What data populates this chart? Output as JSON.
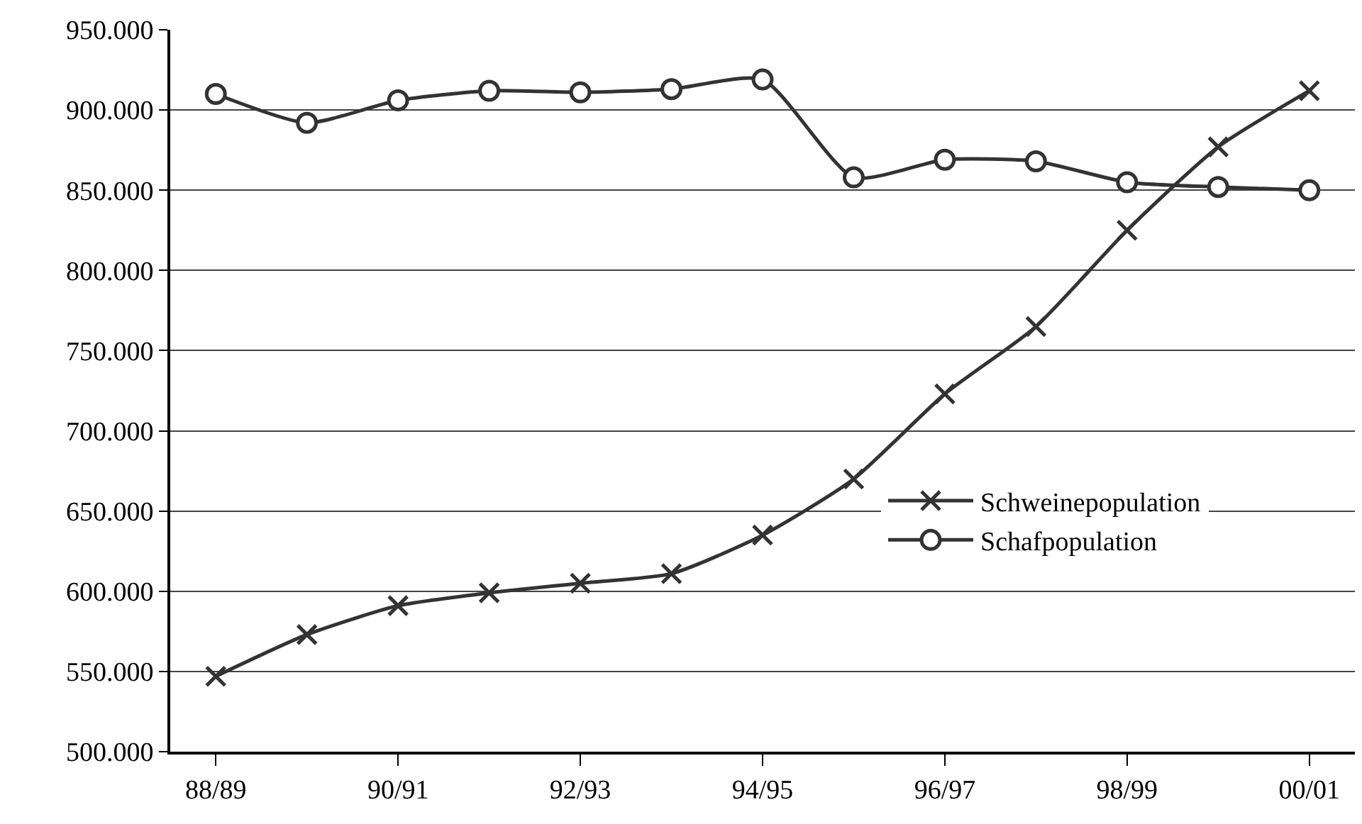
{
  "chart_data": {
    "type": "line",
    "categories": [
      "88/89",
      null,
      "90/91",
      null,
      "92/93",
      null,
      "94/95",
      null,
      "96/97",
      null,
      "98/99",
      null,
      "00/01"
    ],
    "series": [
      {
        "name": "Schweinepopulation",
        "color": "#333333",
        "marker": "cross",
        "values": [
          547000,
          573000,
          591000,
          599000,
          605000,
          611000,
          635000,
          670000,
          723000,
          765000,
          825000,
          877000,
          912000
        ]
      },
      {
        "name": "Schafpopulation",
        "color": "#333333",
        "marker": "circle",
        "values": [
          910000,
          892000,
          906000,
          912000,
          911000,
          913000,
          919000,
          858000,
          869000,
          868000,
          855000,
          852000,
          850000
        ]
      }
    ],
    "ylim": [
      500000,
      950000
    ],
    "yticks": [
      {
        "value": 500000,
        "label": "500.000"
      },
      {
        "value": 550000,
        "label": "550.000"
      },
      {
        "value": 600000,
        "label": "600.000"
      },
      {
        "value": 650000,
        "label": "650.000"
      },
      {
        "value": 700000,
        "label": "700.000"
      },
      {
        "value": 750000,
        "label": "750.000"
      },
      {
        "value": 800000,
        "label": "800.000"
      },
      {
        "value": 850000,
        "label": "850.000"
      },
      {
        "value": 900000,
        "label": "900.000"
      },
      {
        "value": 950000,
        "label": "950.000"
      }
    ],
    "grid": "y",
    "legend": "right",
    "line_style": "solid"
  }
}
